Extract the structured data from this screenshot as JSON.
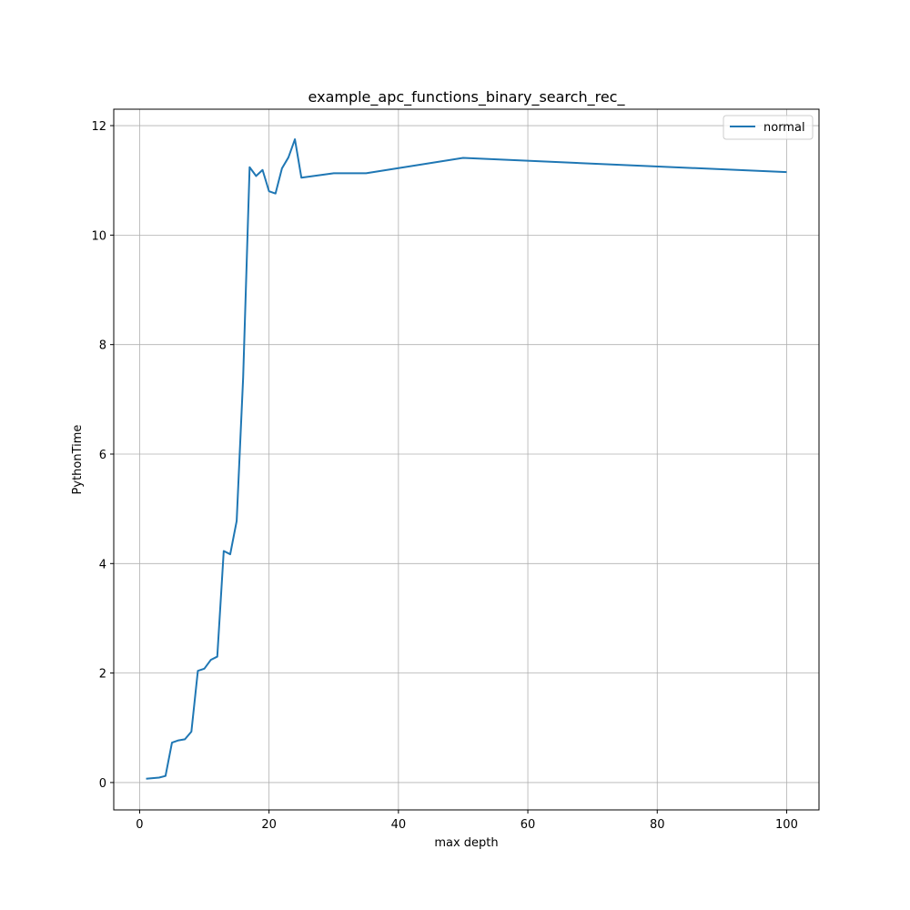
{
  "chart_data": {
    "type": "line",
    "title": "example_apc_functions_binary_search_rec_",
    "xlabel": "max depth",
    "ylabel": "PythonTime",
    "xlim": [
      -4,
      105
    ],
    "ylim": [
      -0.5,
      12.3
    ],
    "xticks": [
      0,
      20,
      40,
      60,
      80,
      100
    ],
    "yticks": [
      0,
      2,
      4,
      6,
      8,
      10,
      12
    ],
    "grid": true,
    "legend": "top-right",
    "series": [
      {
        "name": "normal",
        "color": "#1f77b4",
        "x": [
          1,
          2,
          3,
          4,
          5,
          6,
          7,
          8,
          9,
          10,
          11,
          12,
          13,
          14,
          15,
          16,
          17,
          18,
          19,
          20,
          21,
          22,
          23,
          24,
          25,
          30,
          35,
          50,
          100
        ],
        "y": [
          0.07,
          0.08,
          0.09,
          0.12,
          0.73,
          0.77,
          0.79,
          0.93,
          2.04,
          2.08,
          2.24,
          2.3,
          4.23,
          4.17,
          4.78,
          7.4,
          11.24,
          11.08,
          11.19,
          10.8,
          10.76,
          11.22,
          11.42,
          11.75,
          11.05,
          11.13,
          11.13,
          11.41,
          11.15
        ]
      }
    ]
  }
}
